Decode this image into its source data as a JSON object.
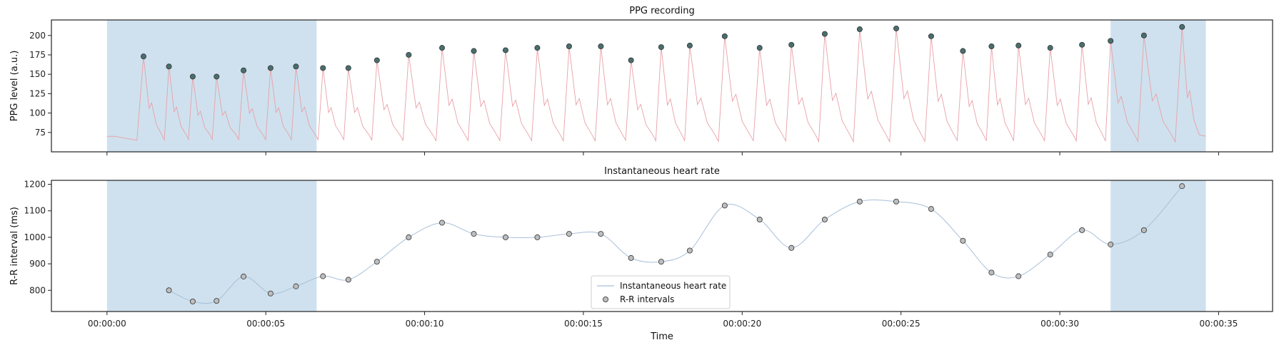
{
  "chart_data": [
    {
      "type": "line",
      "title": "PPG recording",
      "ylabel": "PPG level (a.u.)",
      "xlabel": "",
      "ylim": [
        50,
        220
      ],
      "xlim": [
        -1.75,
        36.7
      ],
      "x_unit": "seconds",
      "yticks": [
        75,
        100,
        125,
        150,
        175,
        200
      ],
      "xticks": [
        0,
        5,
        10,
        15,
        20,
        25,
        30,
        35
      ],
      "shaded_regions": [
        [
          0,
          6.6
        ],
        [
          31.6,
          34.6
        ]
      ],
      "shade_color": "#cfe1ee",
      "series": [
        {
          "name": "",
          "color": "#e8a0a8",
          "kind": "line",
          "baseline_level": 70
        },
        {
          "name": "",
          "color": "#4a6e6e",
          "kind": "scatter",
          "x": [
            1.15,
            1.95,
            2.7,
            3.45,
            4.3,
            5.15,
            5.95,
            6.8,
            7.6,
            8.5,
            9.5,
            10.55,
            11.55,
            12.55,
            13.55,
            14.55,
            15.55,
            16.5,
            17.45,
            18.35,
            19.45,
            20.55,
            21.55,
            22.6,
            23.7,
            24.85,
            25.95,
            26.95,
            27.85,
            28.7,
            29.7,
            30.7,
            31.6,
            32.65,
            33.85
          ],
          "y": [
            173,
            160,
            147,
            147,
            155,
            158,
            160,
            158,
            158,
            168,
            175,
            184,
            180,
            181,
            184,
            186,
            186,
            168,
            185,
            187,
            199,
            184,
            188,
            202,
            208,
            209,
            199,
            180,
            186,
            187,
            184,
            188,
            193,
            200,
            211
          ]
        }
      ]
    },
    {
      "type": "line",
      "title": "Instantaneous heart rate",
      "ylabel": "R-R interval (ms)",
      "xlabel": "Time",
      "ylim": [
        720,
        1215
      ],
      "xlim": [
        -1.75,
        36.7
      ],
      "x_unit": "seconds",
      "yticks": [
        800,
        900,
        1000,
        1100,
        1200
      ],
      "xticks": [
        0,
        5,
        10,
        15,
        20,
        25,
        30,
        35
      ],
      "xtick_labels": [
        "00:00:00",
        "00:00:05",
        "00:00:10",
        "00:00:15",
        "00:00:20",
        "00:00:25",
        "00:00:30",
        "00:00:35"
      ],
      "shaded_regions": [
        [
          0,
          6.6
        ],
        [
          31.6,
          34.6
        ]
      ],
      "shade_color": "#cfe1ee",
      "legend": "lower-center",
      "series": [
        {
          "name": "Instantaneous heart rate",
          "color": "#a9bfd9",
          "kind": "line",
          "x": [
            1.95,
            2.7,
            3.45,
            4.3,
            5.15,
            5.95,
            6.8,
            7.6,
            8.5,
            9.5,
            10.55,
            11.55,
            12.55,
            13.55,
            14.55,
            15.55,
            16.5,
            17.45,
            18.35,
            19.45,
            20.55,
            21.55,
            22.6,
            23.7,
            24.85,
            25.95,
            26.95,
            27.85,
            28.7,
            29.7,
            30.7,
            31.6,
            32.65,
            33.85
          ],
          "y": [
            800,
            758,
            760,
            852,
            788,
            815,
            853,
            840,
            908,
            1000,
            1055,
            1013,
            1000,
            1000,
            1013,
            1013,
            922,
            908,
            950,
            1120,
            1067,
            960,
            1067,
            1135,
            1135,
            1107,
            987,
            867,
            853,
            935,
            1027,
            973,
            1027,
            1193
          ]
        },
        {
          "name": "R-R intervals",
          "color": "#bdbdbd",
          "kind": "scatter",
          "x": [
            1.95,
            2.7,
            3.45,
            4.3,
            5.15,
            5.95,
            6.8,
            7.6,
            8.5,
            9.5,
            10.55,
            11.55,
            12.55,
            13.55,
            14.55,
            15.55,
            16.5,
            17.45,
            18.35,
            19.45,
            20.55,
            21.55,
            22.6,
            23.7,
            24.85,
            25.95,
            26.95,
            27.85,
            28.7,
            29.7,
            30.7,
            31.6,
            32.65,
            33.85
          ],
          "y": [
            800,
            758,
            760,
            852,
            788,
            815,
            853,
            840,
            908,
            1000,
            1055,
            1013,
            1000,
            1000,
            1013,
            1013,
            922,
            908,
            950,
            1120,
            1067,
            960,
            1067,
            1135,
            1135,
            1107,
            987,
            867,
            853,
            935,
            1027,
            973,
            1027,
            1193
          ]
        }
      ]
    }
  ]
}
